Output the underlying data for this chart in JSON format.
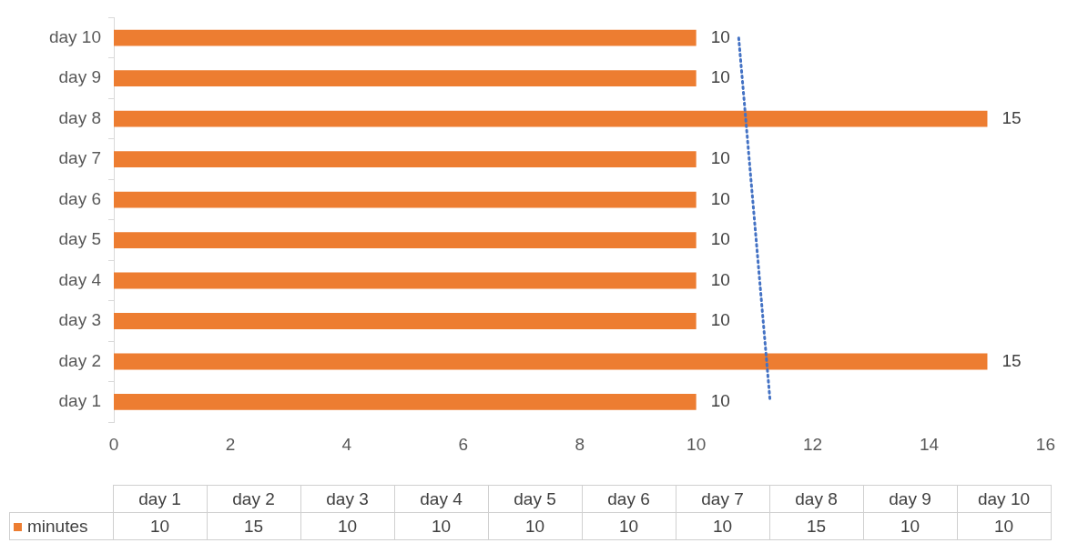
{
  "chart_data": {
    "type": "bar",
    "orientation": "horizontal",
    "categories": [
      "day 10",
      "day 9",
      "day 8",
      "day 7",
      "day 6",
      "day 5",
      "day 4",
      "day 3",
      "day 2",
      "day 1"
    ],
    "series": [
      {
        "name": "minutes",
        "color": "#ed7d31",
        "values": [
          10,
          10,
          15,
          10,
          10,
          10,
          10,
          10,
          15,
          10
        ],
        "value_labels": [
          "10",
          "10",
          "15",
          "10",
          "10",
          "10",
          "10",
          "10",
          "15",
          "10"
        ]
      },
      {
        "type": "line",
        "color": "#4472c4",
        "line_style": "dotted",
        "values": [
          10.73,
          10.79,
          10.85,
          10.91,
          10.97,
          11.03,
          11.09,
          11.15,
          11.21,
          11.27
        ]
      }
    ],
    "xlim": [
      0,
      16
    ],
    "xticks": [
      0,
      2,
      4,
      6,
      8,
      10,
      12,
      14,
      16
    ],
    "grid": false
  }
}
